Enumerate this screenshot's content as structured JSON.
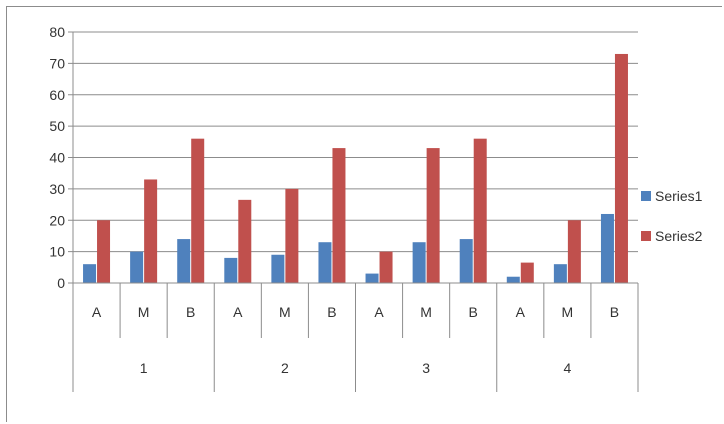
{
  "chart_data": {
    "type": "bar",
    "title": "",
    "xlabel": "",
    "ylabel": "",
    "ylim": [
      0,
      80
    ],
    "yticks": [
      0,
      10,
      20,
      30,
      40,
      50,
      60,
      70,
      80
    ],
    "grid": true,
    "legend_position": "right",
    "groups": [
      "1",
      "2",
      "3",
      "4"
    ],
    "subcategories": [
      "A",
      "M",
      "B"
    ],
    "categories": [
      "A",
      "M",
      "B",
      "A",
      "M",
      "B",
      "A",
      "M",
      "B",
      "A",
      "M",
      "B"
    ],
    "series": [
      {
        "name": "Series1",
        "color": "#4f81bd",
        "values": [
          6,
          10,
          14,
          8,
          9,
          13,
          3,
          13,
          14,
          2,
          6,
          22
        ]
      },
      {
        "name": "Series2",
        "color": "#c0504d",
        "values": [
          20,
          33,
          46,
          26.5,
          30,
          43,
          10,
          43,
          46,
          6.5,
          20,
          73
        ]
      }
    ]
  }
}
